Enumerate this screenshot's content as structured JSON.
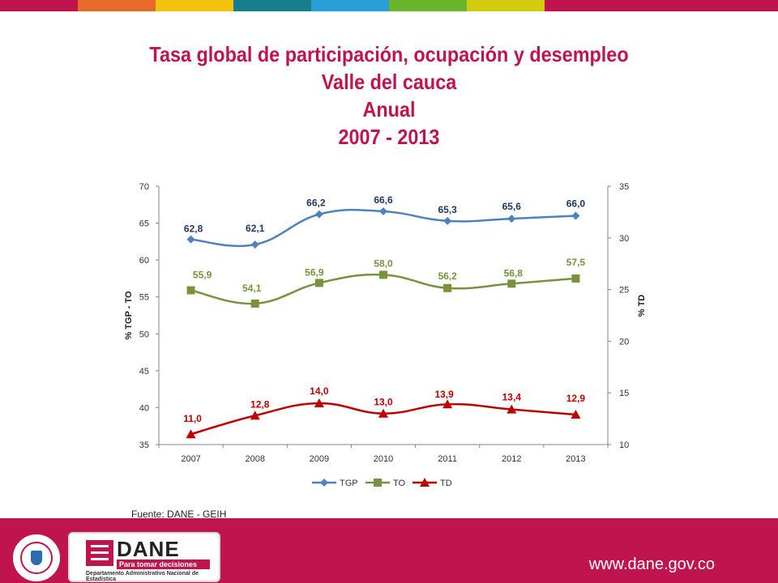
{
  "title_lines": [
    "Tasa global de participación, ocupación y desempleo",
    "Valle del cauca",
    "Anual",
    "2007 - 2013"
  ],
  "source": "Fuente: DANE - GEIH",
  "footer": {
    "url": "www.dane.gov.co",
    "logo_word": "DANE",
    "logo_tagline": "Para tomar decisiones",
    "logo_subtitle": "Departamento Administrativo Nacional de Estadística"
  },
  "colors": {
    "brand": "#c0144f",
    "tgp": "#4f81bd",
    "to": "#77933c",
    "td": "#c00000",
    "tgp_label": "#1f3864",
    "to_label": "#77933c",
    "td_label": "#c00000",
    "top_stripes": [
      "#c0144f",
      "#e8692c",
      "#f2c20d",
      "#1a7d8f",
      "#2a9ed6",
      "#6ab42d",
      "#d4cb0e",
      "#c0144f",
      "#c0144f",
      "#c0144f"
    ]
  },
  "chart_data": {
    "type": "line",
    "title": "",
    "categories": [
      "2007",
      "2008",
      "2009",
      "2010",
      "2011",
      "2012",
      "2013"
    ],
    "ylabel_left": "%   TGP - TO",
    "ylabel_right": "%   TD",
    "ylim_left": [
      35,
      70
    ],
    "yticks_left": [
      "35",
      "40",
      "45",
      "50",
      "55",
      "60",
      "65",
      "70"
    ],
    "ylim_right": [
      10,
      35
    ],
    "yticks_right": [
      "10",
      "15",
      "20",
      "25",
      "30",
      "35"
    ],
    "grid": false,
    "legend": "bottom",
    "series": [
      {
        "name": "TGP",
        "axis": "left",
        "marker": "diamond",
        "values": [
          62.8,
          62.1,
          66.2,
          66.6,
          65.3,
          65.6,
          66.0
        ],
        "labels": [
          "62,8",
          "62,1",
          "66,2",
          "66,6",
          "65,3",
          "65,6",
          "66,0"
        ]
      },
      {
        "name": "TO",
        "axis": "left",
        "marker": "square",
        "values": [
          55.9,
          54.1,
          56.9,
          58.0,
          56.2,
          56.8,
          57.5
        ],
        "labels": [
          "55,9",
          "54,1",
          "56,9",
          "58,0",
          "56,2",
          "56,8",
          "57,5"
        ]
      },
      {
        "name": "TD",
        "axis": "right",
        "marker": "triangle",
        "values": [
          11.0,
          12.8,
          14.0,
          13.0,
          13.9,
          13.4,
          12.9
        ],
        "labels": [
          "11,0",
          "12,8",
          "14,0",
          "13,0",
          "13,9",
          "13,4",
          "12,9"
        ]
      }
    ]
  }
}
